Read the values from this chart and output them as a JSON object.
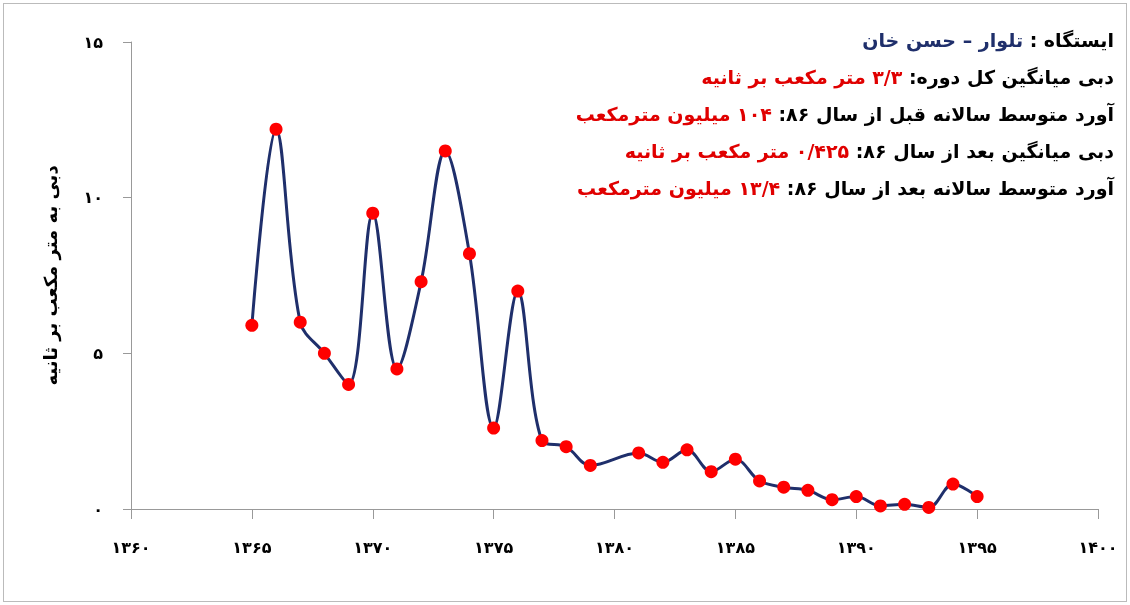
{
  "chart_data": {
    "type": "line",
    "title": "ایستگاه : تلوار – حسن خان",
    "ylabel": "دبی به متر مکعب بر ثانیه",
    "annotations": [
      "دبی میانگین کل دوره: ۳/۳ متر مکعب بر ثانیه",
      "آورد متوسط سالانه قبل از سال ۸۶: ۱۰۴ میلیون مترمکعب",
      "دبی میانگین بعد از سال ۸۶: ۰/۴۲۵ متر مکعب بر ثانیه",
      "آورد متوسط سالانه بعد از سال ۸۶: ۱۳/۴ میلیون مترمکعب"
    ],
    "x": [
      1365,
      1366,
      1367,
      1368,
      1369,
      1370,
      1371,
      1372,
      1373,
      1374,
      1375,
      1376,
      1377,
      1378,
      1379,
      1381,
      1382,
      1383,
      1384,
      1385,
      1386,
      1387,
      1388,
      1389,
      1390,
      1391,
      1392,
      1393,
      1394,
      1395
    ],
    "series": [
      {
        "color": "#1f2f6b",
        "colors": [
          "#ff0000",
          "#ff0000",
          "#ff0000",
          "#ff0000",
          "#ff0000",
          "#ff0000",
          "#ff0000",
          "#ff0000",
          "#ff0000",
          "#ff0000",
          "#ff0000",
          "#ff0000",
          "#ff0000",
          "#ff0000",
          "#ff0000",
          "#ff0000",
          "#ff0000",
          "#ff0000",
          "#ff0000",
          "#ff0000",
          "#ff0000",
          "#ff0000",
          "#ff0000",
          "#ff0000",
          "#ff0000",
          "#ff0000",
          "#ff0000",
          "#ff0000",
          "#ff0000",
          "#ff0000"
        ],
        "values": [
          5.9,
          12.2,
          6.0,
          5.0,
          4.0,
          9.5,
          4.5,
          7.3,
          11.5,
          8.2,
          2.6,
          7.0,
          2.2,
          2.0,
          1.4,
          1.8,
          1.5,
          1.9,
          1.2,
          1.6,
          0.9,
          0.7,
          0.6,
          0.3,
          0.4,
          0.1,
          0.15,
          0.05,
          0.8,
          0.4
        ]
      }
    ],
    "xlim": [
      1360,
      1400
    ],
    "xticks": [
      {
        "value": 1360,
        "label": "۱۳۶۰"
      },
      {
        "value": 1365,
        "label": "۱۳۶۵"
      },
      {
        "value": 1370,
        "label": "۱۳۷۰"
      },
      {
        "value": 1375,
        "label": "۱۳۷۵"
      },
      {
        "value": 1380,
        "label": "۱۳۸۰"
      },
      {
        "value": 1385,
        "label": "۱۳۸۵"
      },
      {
        "value": 1390,
        "label": "۱۳۹۰"
      },
      {
        "value": 1395,
        "label": "۱۳۹۵"
      },
      {
        "value": 1400,
        "label": "۱۴۰۰"
      }
    ],
    "ylim": [
      0,
      15
    ],
    "yticks": [
      {
        "value": 0,
        "label": "۰"
      },
      {
        "value": 5,
        "label": "۵"
      },
      {
        "value": 10,
        "label": "۱۰"
      },
      {
        "value": 15,
        "label": "۱۵"
      }
    ],
    "grid": false,
    "marker": "circle",
    "line_style": "solid"
  }
}
